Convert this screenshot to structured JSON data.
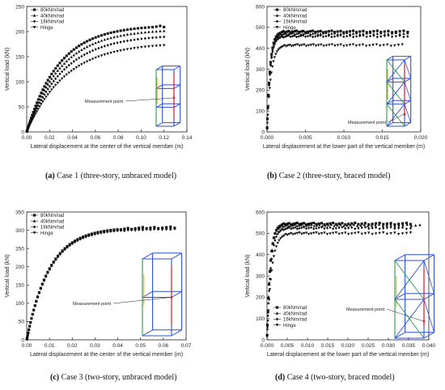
{
  "captions": [
    {
      "tag": "(a)",
      "text": " Case 1 (three-story, unbraced model)"
    },
    {
      "tag": "(b)",
      "text": " Case 2 (three-story, braced model)"
    },
    {
      "tag": "(c)",
      "text": " Case 3 (two-story, unbraced model)"
    },
    {
      "tag": "(d)",
      "text": " Case 4 (two-story, braced model)"
    }
  ],
  "colors": {
    "axis": "#222222",
    "marker": "#111111",
    "frame": "#2d4fd8",
    "accent_red": "#d8262a",
    "accent_orange": "#e8a020",
    "accent_green": "#2a9d4a"
  },
  "chart_data": [
    {
      "type": "scatter",
      "title": "",
      "xlabel": "Lateral displacement at the center of the vertical member (m)",
      "ylabel": "Vertical load (kN)",
      "xlim": [
        0.0,
        0.14
      ],
      "ylim": [
        0,
        250
      ],
      "xticks": [
        "0.00",
        "0.02",
        "0.04",
        "0.06",
        "0.08",
        "0.10",
        "0.12",
        "0.14"
      ],
      "yticks": [
        "0",
        "50",
        "100",
        "150",
        "200",
        "250"
      ],
      "legend_position": "top-left",
      "annotation": "Measurement point",
      "series": [
        {
          "name": "80kNm/rad",
          "marker": "square",
          "x_end": 0.12,
          "plateau": 213,
          "knee": 0.028
        },
        {
          "name": "40kNm/rad",
          "marker": "triangle",
          "x_end": 0.12,
          "plateau": 205,
          "knee": 0.03
        },
        {
          "name": "16kNm/rad",
          "marker": "diamond",
          "x_end": 0.12,
          "plateau": 194,
          "knee": 0.032
        },
        {
          "name": "Hinge",
          "marker": "triangle-down",
          "x_end": 0.12,
          "plateau": 178,
          "knee": 0.034
        }
      ]
    },
    {
      "type": "scatter",
      "title": "",
      "xlabel": "Lateral displacement at the lower part of the vertical member (m)",
      "ylabel": "Vertical load (kN)",
      "xlim": [
        0.0,
        0.02
      ],
      "ylim": [
        0,
        600
      ],
      "xticks": [
        "0.000",
        "0.005",
        "0.010",
        "0.015",
        "0.020"
      ],
      "yticks": [
        "0",
        "100",
        "200",
        "300",
        "400",
        "500",
        "600"
      ],
      "legend_position": "top-left",
      "annotation": "Measurement point",
      "series": [
        {
          "name": "80kNm/rad",
          "marker": "square",
          "x_end": 0.0183,
          "plateau": 480,
          "knee": 0.0004
        },
        {
          "name": "40kNm/rad",
          "marker": "triangle",
          "x_end": 0.0183,
          "plateau": 470,
          "knee": 0.0004
        },
        {
          "name": "16kNm/rad",
          "marker": "diamond",
          "x_end": 0.0183,
          "plateau": 458,
          "knee": 0.0004
        },
        {
          "name": "Hinge",
          "marker": "triangle-down",
          "x_end": 0.0176,
          "plateau": 415,
          "knee": 0.0005
        }
      ]
    },
    {
      "type": "scatter",
      "title": "",
      "xlabel": "Lateral displacement at the center of the vertical member (m)",
      "ylabel": "Vertical load (kN)",
      "xlim": [
        0.0,
        0.07
      ],
      "ylim": [
        0,
        350
      ],
      "xticks": [
        "0.00",
        "0.01",
        "0.02",
        "0.03",
        "0.04",
        "0.05",
        "0.06",
        "0.07"
      ],
      "yticks": [
        "0",
        "50",
        "100",
        "150",
        "200",
        "250",
        "300",
        "350"
      ],
      "legend_position": "top-left",
      "annotation": "Measurement point",
      "series": [
        {
          "name": "80kNm/rad",
          "marker": "square",
          "x_end": 0.065,
          "plateau": 308,
          "knee": 0.01
        },
        {
          "name": "40kNm/rad",
          "marker": "triangle",
          "x_end": 0.065,
          "plateau": 306,
          "knee": 0.01
        },
        {
          "name": "16kNm/rad",
          "marker": "diamond",
          "x_end": 0.065,
          "plateau": 305,
          "knee": 0.01
        },
        {
          "name": "Hinge",
          "marker": "triangle-down",
          "x_end": 0.065,
          "plateau": 304,
          "knee": 0.01
        }
      ]
    },
    {
      "type": "scatter",
      "title": "",
      "xlabel": "Lateral displacement at the lower part of the vertical member (m)",
      "ylabel": "Vertical load (kN)",
      "xlim": [
        0.0,
        0.04
      ],
      "ylim": [
        0,
        600
      ],
      "xticks": [
        "0.000",
        "0.005",
        "0.010",
        "0.015",
        "0.020",
        "0.025",
        "0.030",
        "0.035",
        "0.040"
      ],
      "yticks": [
        "0",
        "100",
        "200",
        "300",
        "400",
        "500",
        "600"
      ],
      "legend_position": "center-left",
      "annotation": "Measurement point",
      "series": [
        {
          "name": "80kNm/rad",
          "marker": "square",
          "x_end": 0.0355,
          "plateau": 545,
          "knee": 0.0008
        },
        {
          "name": "40kNm/rad",
          "marker": "triangle",
          "x_end": 0.0378,
          "plateau": 537,
          "knee": 0.0008
        },
        {
          "name": "16kNm/rad",
          "marker": "diamond",
          "x_end": 0.0355,
          "plateau": 525,
          "knee": 0.0009
        },
        {
          "name": "Hinge",
          "marker": "triangle-down",
          "x_end": 0.0355,
          "plateau": 500,
          "knee": 0.0011
        }
      ]
    }
  ]
}
